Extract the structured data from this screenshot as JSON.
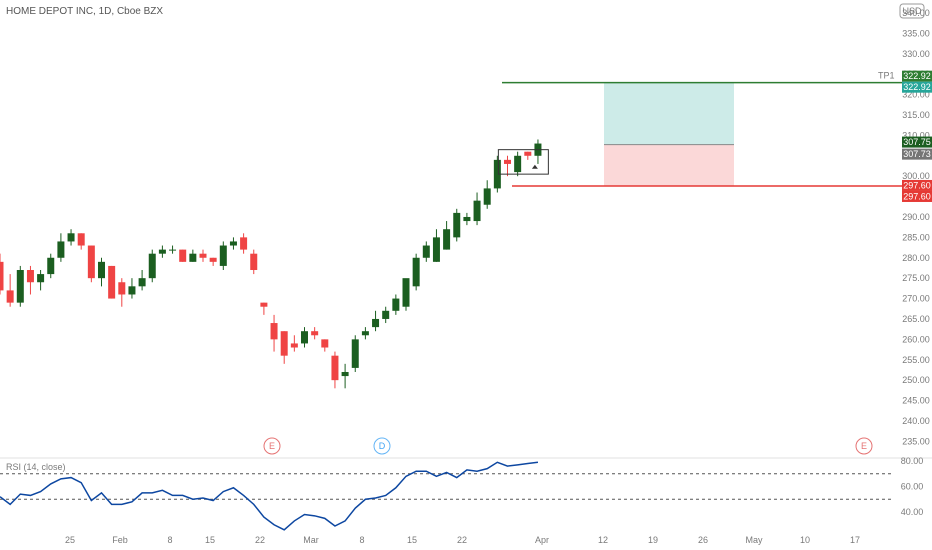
{
  "header": {
    "title": "HOME DEPOT INC, 1D, Cboe BZX",
    "currency": "USD"
  },
  "rsi": {
    "label": "RSI (14, close)",
    "levels": [
      80,
      60,
      40
    ],
    "upper": 70,
    "lower": 50,
    "values": [
      52,
      46,
      54,
      53,
      56,
      62,
      66,
      67,
      63,
      49,
      55,
      46,
      46,
      48,
      55,
      55,
      57,
      53,
      53,
      50,
      51,
      49,
      56,
      59,
      53,
      46,
      36,
      30,
      26,
      33,
      38,
      37,
      35,
      29,
      33,
      43,
      50,
      51,
      53,
      59,
      68,
      72,
      72,
      68,
      71,
      67,
      73,
      72,
      74,
      79,
      76,
      77,
      78,
      79
    ]
  },
  "markers": {
    "earnings_label": "E",
    "dividend_label": "D"
  },
  "trade": {
    "tp_label": "TP1",
    "target": 322.92,
    "target_label": "322.92",
    "entry": 307.73,
    "entry_label": "307.73",
    "stop": 297.6,
    "stop_label": "297.60",
    "last": 307.75,
    "last_label": "307.75"
  },
  "colors": {
    "up": "#1b5e20",
    "down": "#ef4444",
    "rsi_line": "#0d47a1",
    "target_zone": "#cdebe8",
    "stop_zone": "#fbd8d8",
    "target_line": "#2e7d32",
    "stop_line": "#e53935",
    "entry_tag": "#757575"
  },
  "chart_data": {
    "type": "candlestick",
    "title": "HOME DEPOT INC, 1D, Cboe BZX",
    "ylim": [
      233,
      340
    ],
    "y_ticks": [
      340,
      335,
      330,
      325,
      320,
      315,
      310,
      305,
      300,
      295,
      290,
      285,
      280,
      275,
      270,
      265,
      260,
      255,
      250,
      245,
      240,
      235
    ],
    "x_ticks": [
      "25",
      "Feb",
      "8",
      "15",
      "22",
      "Mar",
      "8",
      "15",
      "22",
      "Apr",
      "12",
      "19",
      "26",
      "May",
      "10",
      "17"
    ],
    "candles": [
      {
        "o": 279,
        "h": 281,
        "l": 271,
        "c": 272
      },
      {
        "o": 272,
        "h": 276,
        "l": 268,
        "c": 269
      },
      {
        "o": 269,
        "h": 278,
        "l": 268,
        "c": 277
      },
      {
        "o": 277,
        "h": 278,
        "l": 271,
        "c": 274
      },
      {
        "o": 274,
        "h": 277,
        "l": 272,
        "c": 276
      },
      {
        "o": 276,
        "h": 281,
        "l": 275,
        "c": 280
      },
      {
        "o": 280,
        "h": 286,
        "l": 279,
        "c": 284
      },
      {
        "o": 284,
        "h": 287,
        "l": 283,
        "c": 286
      },
      {
        "o": 286,
        "h": 286,
        "l": 282,
        "c": 283
      },
      {
        "o": 283,
        "h": 283,
        "l": 274,
        "c": 275
      },
      {
        "o": 275,
        "h": 280,
        "l": 273,
        "c": 279
      },
      {
        "o": 278,
        "h": 278,
        "l": 270,
        "c": 270
      },
      {
        "o": 274,
        "h": 275,
        "l": 268,
        "c": 271
      },
      {
        "o": 271,
        "h": 275,
        "l": 270,
        "c": 273
      },
      {
        "o": 273,
        "h": 277,
        "l": 272,
        "c": 275
      },
      {
        "o": 275,
        "h": 282,
        "l": 274,
        "c": 281
      },
      {
        "o": 281,
        "h": 283,
        "l": 280,
        "c": 282
      },
      {
        "o": 282,
        "h": 283,
        "l": 281,
        "c": 282
      },
      {
        "o": 282,
        "h": 282,
        "l": 279,
        "c": 279
      },
      {
        "o": 279,
        "h": 282,
        "l": 279,
        "c": 281
      },
      {
        "o": 281,
        "h": 282,
        "l": 279,
        "c": 280
      },
      {
        "o": 280,
        "h": 280,
        "l": 278,
        "c": 279
      },
      {
        "o": 278,
        "h": 284,
        "l": 277,
        "c": 283
      },
      {
        "o": 283,
        "h": 285,
        "l": 282,
        "c": 284
      },
      {
        "o": 285,
        "h": 286,
        "l": 281,
        "c": 282
      },
      {
        "o": 281,
        "h": 282,
        "l": 276,
        "c": 277
      },
      {
        "o": 269,
        "h": 269,
        "l": 266,
        "c": 268
      },
      {
        "o": 264,
        "h": 266,
        "l": 257,
        "c": 260
      },
      {
        "o": 262,
        "h": 262,
        "l": 254,
        "c": 256
      },
      {
        "o": 259,
        "h": 261,
        "l": 257,
        "c": 258
      },
      {
        "o": 259,
        "h": 263,
        "l": 258,
        "c": 262
      },
      {
        "o": 262,
        "h": 263,
        "l": 260,
        "c": 261
      },
      {
        "o": 260,
        "h": 260,
        "l": 257,
        "c": 258
      },
      {
        "o": 256,
        "h": 257,
        "l": 248,
        "c": 250
      },
      {
        "o": 251,
        "h": 254,
        "l": 248,
        "c": 252
      },
      {
        "o": 253,
        "h": 261,
        "l": 252,
        "c": 260
      },
      {
        "o": 261,
        "h": 263,
        "l": 260,
        "c": 262
      },
      {
        "o": 263,
        "h": 267,
        "l": 262,
        "c": 265
      },
      {
        "o": 265,
        "h": 268,
        "l": 264,
        "c": 267
      },
      {
        "o": 267,
        "h": 271,
        "l": 266,
        "c": 270
      },
      {
        "o": 268,
        "h": 274,
        "l": 267,
        "c": 275
      },
      {
        "o": 273,
        "h": 281,
        "l": 272,
        "c": 280
      },
      {
        "o": 280,
        "h": 284,
        "l": 279,
        "c": 283
      },
      {
        "o": 279,
        "h": 287,
        "l": 279,
        "c": 285
      },
      {
        "o": 282,
        "h": 289,
        "l": 282,
        "c": 287
      },
      {
        "o": 285,
        "h": 292,
        "l": 284,
        "c": 291
      },
      {
        "o": 289,
        "h": 291,
        "l": 288,
        "c": 290
      },
      {
        "o": 289,
        "h": 296,
        "l": 288,
        "c": 294
      },
      {
        "o": 293,
        "h": 299,
        "l": 292,
        "c": 297
      },
      {
        "o": 297,
        "h": 305,
        "l": 296,
        "c": 304
      },
      {
        "o": 304,
        "h": 305,
        "l": 300,
        "c": 303
      },
      {
        "o": 301,
        "h": 306,
        "l": 300,
        "c": 305
      },
      {
        "o": 306,
        "h": 306,
        "l": 304,
        "c": 305
      },
      {
        "o": 305,
        "h": 309,
        "l": 303,
        "c": 308
      }
    ]
  }
}
